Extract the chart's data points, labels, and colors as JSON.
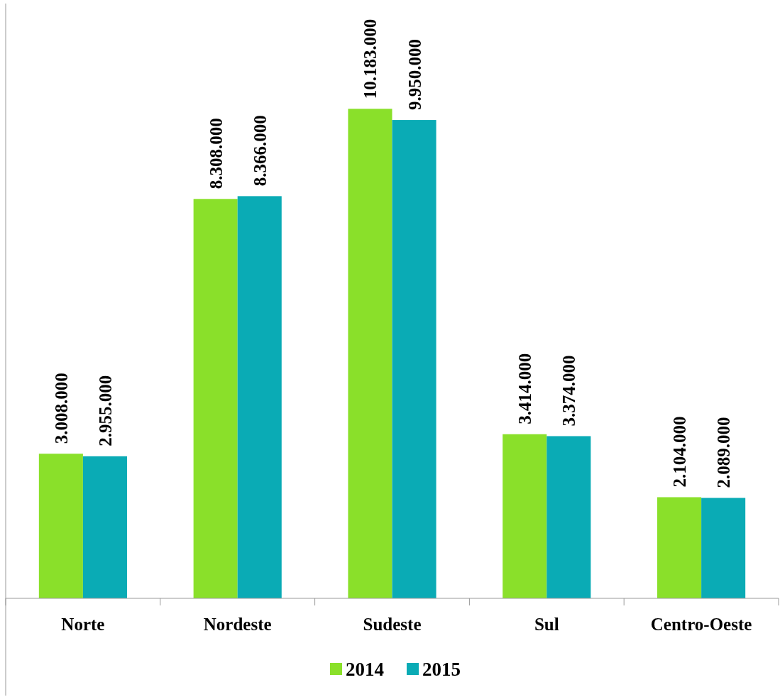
{
  "chart_data": {
    "type": "bar",
    "categories": [
      "Norte",
      "Nordeste",
      "Sudeste",
      "Sul",
      "Centro-Oeste"
    ],
    "series": [
      {
        "name": "2014",
        "color": "#8ae02a",
        "values": [
          3008000,
          8308000,
          10183000,
          3414000,
          2104000
        ],
        "value_labels": [
          "3.008.000",
          "8.308.000",
          "10.183.000",
          "3.414.000",
          "2.104.000"
        ]
      },
      {
        "name": "2015",
        "color": "#0aabb5",
        "values": [
          2955000,
          8366000,
          9950000,
          3374000,
          2089000
        ],
        "value_labels": [
          "2.955.000",
          "8.366.000",
          "9.950.000",
          "3.374.000",
          "2.089.000"
        ]
      }
    ],
    "legend": "bottom"
  }
}
